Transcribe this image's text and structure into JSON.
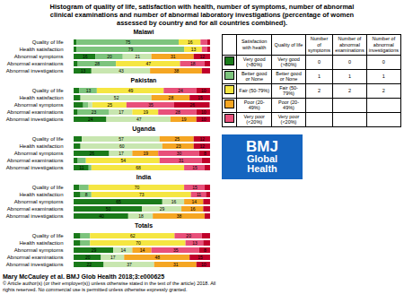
{
  "title": "Histogram of quality of life, satisfaction with health, number of symptoms, number of abnormal\nclinical examinations and number of abnormal laboratory investigations (percentage of women\nassessed by country and for all countries combined).",
  "subtitle": "Mary McCauley et al. BMJ Glob Health 2018;3:e000625",
  "caption": "© Article author(s) (or their employer(s)) unless otherwise stated in the text of the article) 2018. All\nrights reserved. No commercial use is permitted unless otherwise expressly granted.",
  "logo": {
    "texts": [
      "BMJ",
      "Global",
      "Health"
    ],
    "color": "#1565c0"
  },
  "legend_table": {
    "columns": [
      "Satisfaction\nwith health",
      "Quality of life",
      "Number of\nsymptoms",
      "Number of\nabnormal\nexaminations",
      "Number of\nabnormal\ninvestigations"
    ],
    "colors": [
      "#1a7a1a",
      "#7dc47d",
      "#f5e642",
      "#f5a623",
      "#e8507a"
    ],
    "rows": [
      [
        "Very good\n(>80%)",
        "Very good\n(>80%)",
        "0",
        "0",
        "0"
      ],
      [
        "Better good\nor None",
        "Better good\nor None",
        "1",
        "1",
        "1"
      ],
      [
        "Fair (50-79%)",
        "Fair (50-79%)",
        "2",
        "2",
        "2"
      ],
      [
        "Poor (20-49%)",
        "Poor (20-49%)",
        null,
        null,
        null
      ],
      [
        "Very poor\n(<20%)",
        "Very poor\n(<20%)",
        null,
        null,
        null
      ]
    ]
  },
  "chart_data": [
    {
      "type": "bar",
      "title": "Malawi",
      "orientation": "horizontal",
      "stacked": true,
      "data_labels": true,
      "tick_labels": "y",
      "categories": [
        "Quality of life",
        "Health satisfaction",
        "Abnormal symptoms",
        "Abnormal examinations",
        "Abnormal investigations"
      ],
      "xlim": [
        -2,
        102
      ],
      "series": [
        {
          "color": "#1a7a1a",
          "values": [
            2,
            2,
            16,
            3,
            13
          ],
          "value_labels": [
            null,
            null,
            "16",
            null,
            "13"
          ]
        },
        {
          "color": "#7dc47d",
          "values": [
            75,
            79,
            20,
            28,
            0
          ],
          "value_labels": [
            "75",
            "79",
            "20",
            "28",
            null
          ]
        },
        {
          "color": "#c8e6b0",
          "values": [
            0,
            0,
            21,
            0,
            43
          ],
          "value_labels": [
            null,
            null,
            "21",
            null,
            "43"
          ]
        },
        {
          "color": "#f5e642",
          "values": [
            16,
            13,
            0,
            47,
            0
          ],
          "value_labels": [
            "16",
            "13",
            null,
            "47",
            null
          ]
        },
        {
          "color": "#f5a623",
          "values": [
            0,
            0,
            31,
            0,
            38
          ],
          "value_labels": [
            null,
            null,
            "31",
            null,
            "38"
          ]
        },
        {
          "color": "#e8507a",
          "values": [
            5,
            4,
            0,
            18,
            0
          ],
          "value_labels": [
            null,
            null,
            null,
            "18",
            null
          ]
        },
        {
          "color": "#c0002a",
          "values": [
            2,
            2,
            12,
            4,
            6
          ],
          "value_labels": [
            null,
            null,
            "12",
            null,
            null
          ]
        }
      ]
    },
    {
      "type": "bar",
      "title": "Pakistan",
      "orientation": "horizontal",
      "stacked": true,
      "data_labels": true,
      "tick_labels": "y",
      "categories": [
        "Quality of life",
        "Health satisfaction",
        "Abnormal symptoms",
        "Abnormal examinations",
        "Abnormal investigations"
      ],
      "xlim": [
        -2,
        102
      ],
      "series": [
        {
          "color": "#1a7a1a",
          "values": [
            4,
            5,
            7,
            3,
            24
          ],
          "value_labels": [
            null,
            null,
            null,
            null,
            "24"
          ]
        },
        {
          "color": "#7dc47d",
          "values": [
            13,
            0,
            3.5,
            23,
            0
          ],
          "value_labels": [
            "13",
            null,
            null,
            "23",
            null
          ]
        },
        {
          "color": "#c8e6b0",
          "values": [
            0,
            52,
            3.2,
            17,
            47
          ],
          "value_labels": [
            null,
            "52",
            null,
            "17",
            "47"
          ]
        },
        {
          "color": "#f5e642",
          "values": [
            49,
            0,
            25,
            19,
            0
          ],
          "value_labels": [
            "49",
            null,
            "25",
            "19",
            null
          ]
        },
        {
          "color": "#f5a623",
          "values": [
            0,
            28,
            0,
            0,
            19
          ],
          "value_labels": [
            null,
            "28",
            null,
            null,
            "19"
          ]
        },
        {
          "color": "#e8507a",
          "values": [
            24,
            0,
            35,
            28,
            0
          ],
          "value_labels": [
            "24",
            null,
            "35",
            "28",
            null
          ]
        },
        {
          "color": "#c0002a",
          "values": [
            10,
            15,
            26,
            10,
            10
          ],
          "value_labels": [
            "10",
            "15",
            "26",
            "10",
            "10"
          ]
        }
      ]
    },
    {
      "type": "bar",
      "title": "Uganda",
      "orientation": "horizontal",
      "stacked": true,
      "data_labels": true,
      "tick_labels": "y",
      "categories": [
        "Quality of life",
        "Health satisfaction",
        "Abnormal symptoms",
        "Abnormal examinations",
        "Abnormal investigations"
      ],
      "xlim": [
        -2,
        102
      ],
      "series": [
        {
          "color": "#1a7a1a",
          "values": [
            6,
            5,
            26,
            3,
            11
          ],
          "value_labels": [
            null,
            null,
            "26",
            null,
            "11"
          ]
        },
        {
          "color": "#7dc47d",
          "values": [
            0,
            0,
            0,
            6,
            2
          ],
          "value_labels": [
            null,
            null,
            null,
            null,
            null
          ]
        },
        {
          "color": "#c8e6b0",
          "values": [
            57,
            60,
            17,
            0,
            0
          ],
          "value_labels": [
            "57",
            "60",
            "17",
            null,
            null
          ]
        },
        {
          "color": "#f5e642",
          "values": [
            0,
            0,
            0,
            54,
            68
          ],
          "value_labels": [
            null,
            null,
            null,
            "54",
            "68"
          ]
        },
        {
          "color": "#f5a623",
          "values": [
            25,
            23,
            19,
            0,
            0
          ],
          "value_labels": [
            "25",
            "23",
            "19",
            null,
            null
          ]
        },
        {
          "color": "#e8507a",
          "values": [
            0,
            0,
            30,
            31,
            15
          ],
          "value_labels": [
            null,
            null,
            "30",
            "31",
            "15"
          ]
        },
        {
          "color": "#c0002a",
          "values": [
            12,
            12,
            8,
            6,
            4
          ],
          "value_labels": [
            "12",
            "12",
            "8",
            null,
            null
          ]
        }
      ]
    },
    {
      "type": "bar",
      "title": "India",
      "orientation": "horizontal",
      "stacked": true,
      "data_labels": true,
      "tick_labels": "y",
      "categories": [
        "Quality of life",
        "Health satisfaction",
        "Abnormal symptoms",
        "Abnormal examinations",
        "Abnormal investigations"
      ],
      "xlim": [
        -2,
        102
      ],
      "series": [
        {
          "color": "#1a7a1a",
          "values": [
            4,
            5,
            65,
            50,
            40
          ],
          "value_labels": [
            null,
            null,
            "65",
            "50",
            "40"
          ]
        },
        {
          "color": "#7dc47d",
          "values": [
            7,
            8,
            0,
            0,
            0
          ],
          "value_labels": [
            null,
            "8",
            null,
            null,
            null
          ]
        },
        {
          "color": "#c8e6b0",
          "values": [
            0,
            0,
            16,
            29,
            18
          ],
          "value_labels": [
            null,
            null,
            "16",
            "29",
            "18"
          ]
        },
        {
          "color": "#f5e642",
          "values": [
            70,
            73,
            0,
            0,
            0
          ],
          "value_labels": [
            "70",
            "73",
            null,
            null,
            null
          ]
        },
        {
          "color": "#f5a623",
          "values": [
            0,
            0,
            14,
            16,
            38
          ],
          "value_labels": [
            null,
            null,
            "14",
            "16",
            "38"
          ]
        },
        {
          "color": "#e8507a",
          "values": [
            15,
            11,
            0,
            0,
            0
          ],
          "value_labels": [
            "15",
            "11",
            null,
            null,
            null
          ]
        },
        {
          "color": "#c0002a",
          "values": [
            4,
            3,
            5,
            5,
            4
          ],
          "value_labels": [
            null,
            null,
            null,
            null,
            null
          ]
        }
      ]
    },
    {
      "type": "bar",
      "title": "Totals",
      "orientation": "horizontal",
      "stacked": true,
      "data_labels": true,
      "tick_labels": "y",
      "categories": [
        "Quality of life",
        "Health satisfaction",
        "Abnormal symptoms",
        "Abnormal examinations",
        "Abnormal investigations"
      ],
      "xlim": [
        -2,
        102
      ],
      "series": [
        {
          "color": "#1a7a1a",
          "values": [
            5,
            5,
            29,
            20,
            22
          ],
          "value_labels": [
            null,
            null,
            "29",
            "20",
            "22"
          ]
        },
        {
          "color": "#7dc47d",
          "values": [
            7,
            7,
            0,
            0,
            0
          ],
          "value_labels": [
            null,
            null,
            null,
            null,
            null
          ]
        },
        {
          "color": "#c8e6b0",
          "values": [
            0,
            0,
            14,
            17,
            37
          ],
          "value_labels": [
            null,
            null,
            "14",
            "17",
            "37"
          ]
        },
        {
          "color": "#f5e642",
          "values": [
            62,
            70,
            0,
            0,
            0
          ],
          "value_labels": [
            "62",
            "70",
            null,
            null,
            null
          ]
        },
        {
          "color": "#f5a623",
          "values": [
            0,
            0,
            14,
            48,
            31
          ],
          "value_labels": [
            null,
            null,
            "14",
            "48",
            "31"
          ]
        },
        {
          "color": "#e8507a",
          "values": [
            20,
            13,
            35,
            0,
            0
          ],
          "value_labels": [
            "20",
            "13",
            "35",
            null,
            null
          ]
        },
        {
          "color": "#c0002a",
          "values": [
            6,
            5,
            8,
            15,
            10
          ],
          "value_labels": [
            null,
            null,
            "8",
            "15",
            "10"
          ]
        }
      ]
    }
  ]
}
